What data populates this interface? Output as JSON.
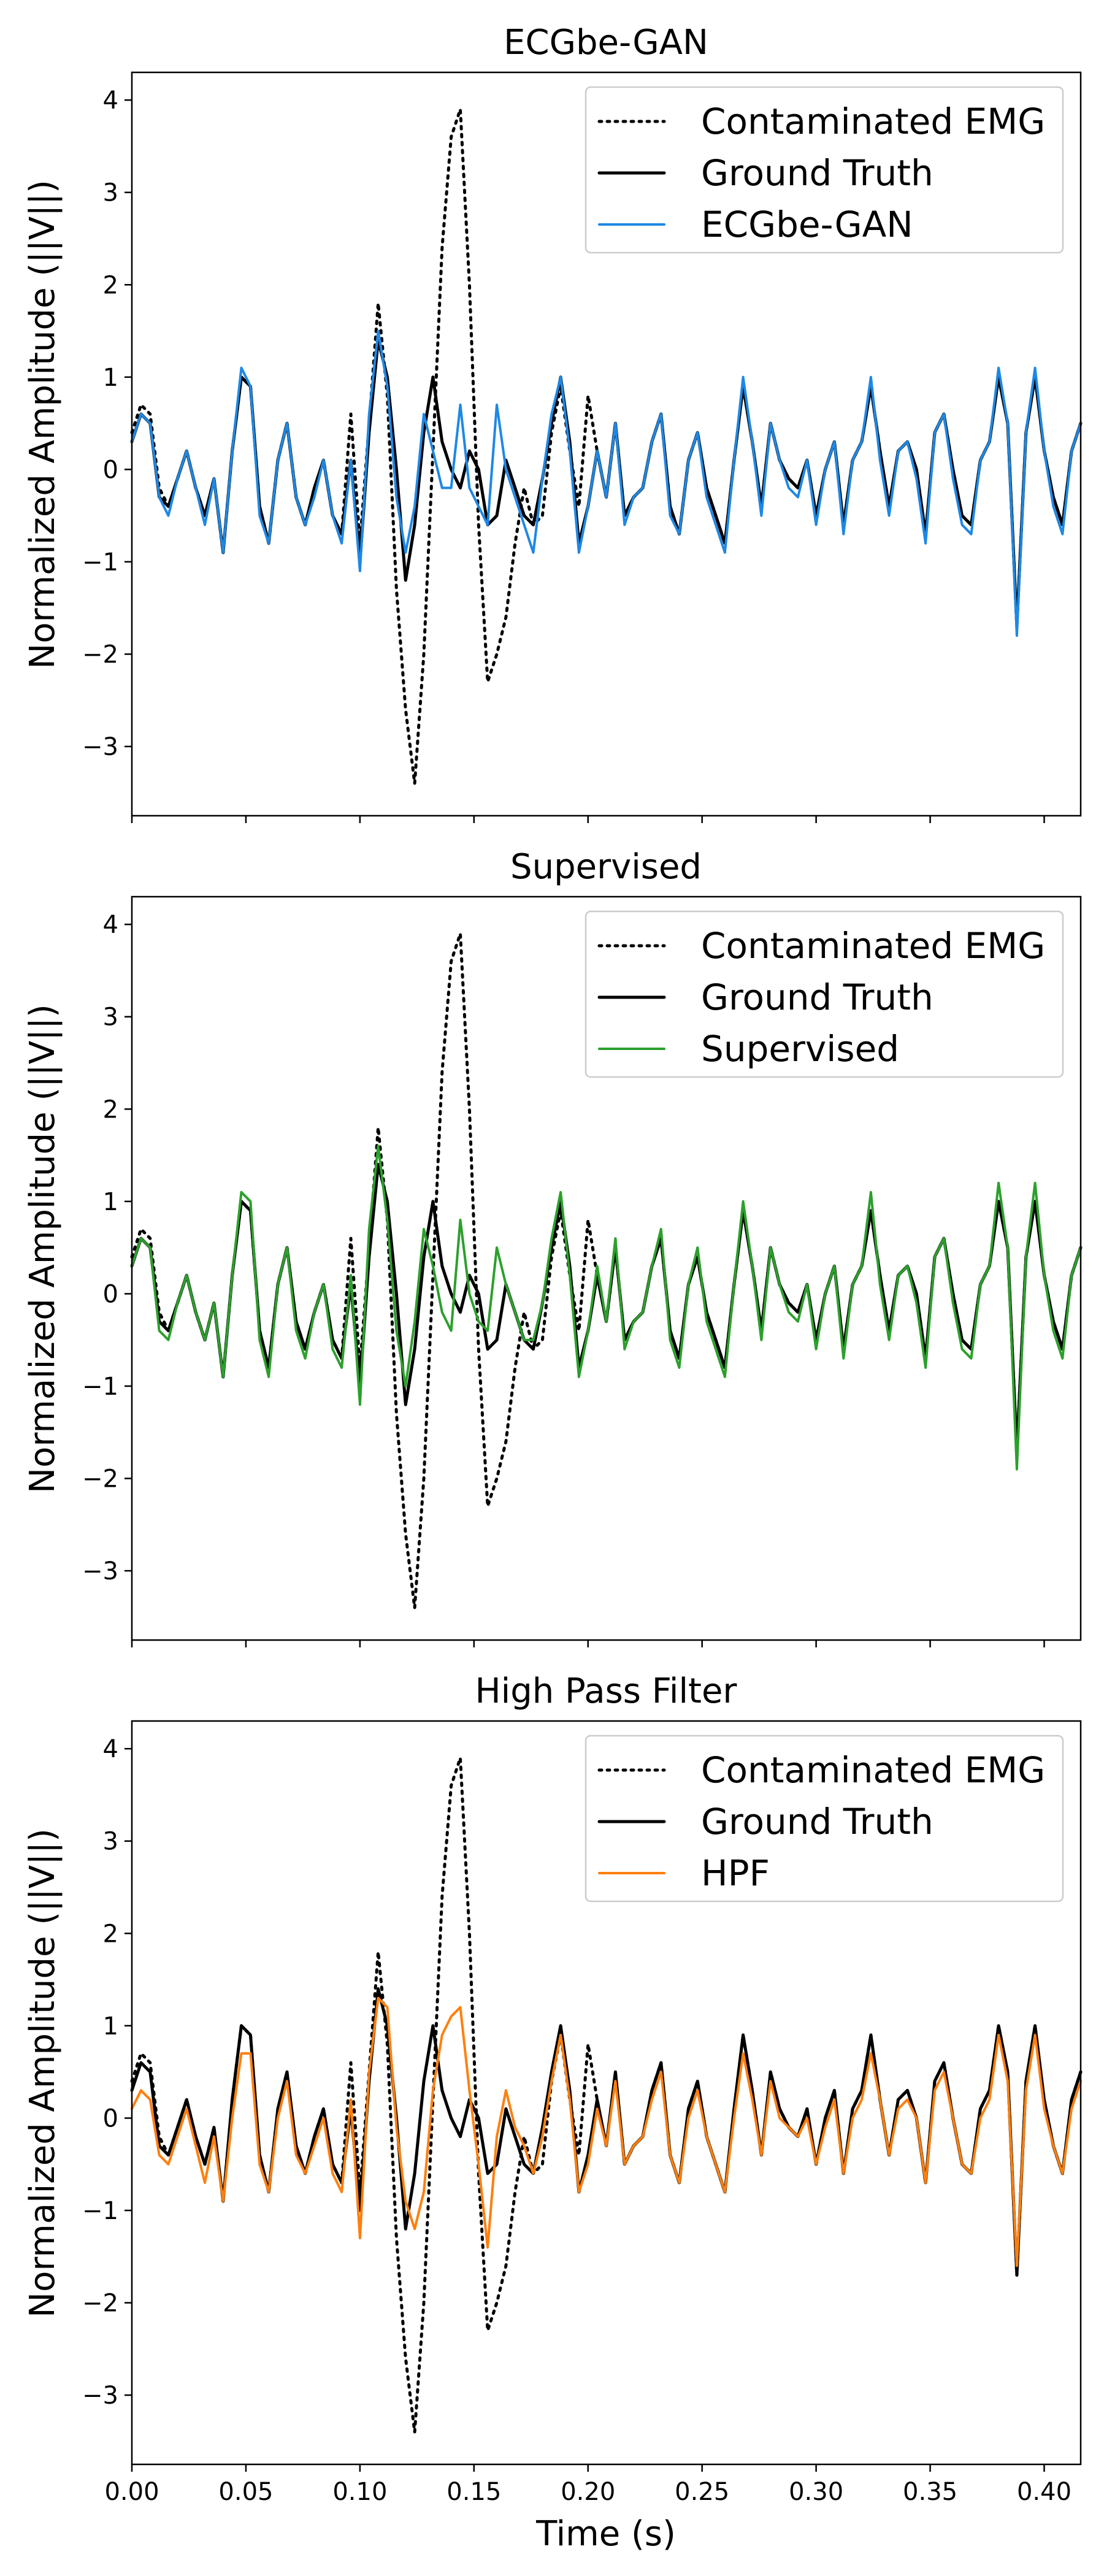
{
  "figure": {
    "xlabel": "Time (s)"
  },
  "chart_data": [
    {
      "type": "line",
      "title": "ECGbe-GAN",
      "ylabel": "Normalized Amplitude (||V||)",
      "xlabel": "",
      "xlim": [
        0,
        0.416
      ],
      "ylim": [
        -3.75,
        4.3
      ],
      "yticks": [
        -3,
        -2,
        -1,
        0,
        1,
        2,
        3,
        4
      ],
      "xticks": [
        0.0,
        0.05,
        0.1,
        0.15,
        0.2,
        0.25,
        0.3,
        0.35,
        0.4
      ],
      "xtick_labels_shown": false,
      "legend": "upper-right",
      "series": [
        {
          "name": "Contaminated EMG",
          "role": "contaminated",
          "color": "#000000",
          "style": "dotted"
        },
        {
          "name": "Ground Truth",
          "role": "truth",
          "color": "#000000",
          "style": "solid"
        },
        {
          "name": "ECGbe-GAN",
          "role": "method",
          "color": "#1e88e5",
          "style": "solid"
        }
      ]
    },
    {
      "type": "line",
      "title": "Supervised",
      "ylabel": "Normalized Amplitude (||V||)",
      "xlabel": "",
      "xlim": [
        0,
        0.416
      ],
      "ylim": [
        -3.75,
        4.3
      ],
      "yticks": [
        -3,
        -2,
        -1,
        0,
        1,
        2,
        3,
        4
      ],
      "xticks": [
        0.0,
        0.05,
        0.1,
        0.15,
        0.2,
        0.25,
        0.3,
        0.35,
        0.4
      ],
      "xtick_labels_shown": false,
      "legend": "upper-right",
      "series": [
        {
          "name": "Contaminated EMG",
          "role": "contaminated",
          "color": "#000000",
          "style": "dotted"
        },
        {
          "name": "Ground Truth",
          "role": "truth",
          "color": "#000000",
          "style": "solid"
        },
        {
          "name": "Supervised",
          "role": "method",
          "color": "#2ca02c",
          "style": "solid"
        }
      ]
    },
    {
      "type": "line",
      "title": "High Pass Filter",
      "ylabel": "Normalized Amplitude (||V||)",
      "xlabel": "Time (s)",
      "xlim": [
        0,
        0.416
      ],
      "ylim": [
        -3.75,
        4.3
      ],
      "yticks": [
        -3,
        -2,
        -1,
        0,
        1,
        2,
        3,
        4
      ],
      "xticks": [
        0.0,
        0.05,
        0.1,
        0.15,
        0.2,
        0.25,
        0.3,
        0.35,
        0.4
      ],
      "xtick_labels": [
        "0.00",
        "0.05",
        "0.10",
        "0.15",
        "0.20",
        "0.25",
        "0.30",
        "0.35",
        "0.40"
      ],
      "xtick_labels_shown": true,
      "legend": "upper-right",
      "series": [
        {
          "name": "Contaminated EMG",
          "role": "contaminated",
          "color": "#000000",
          "style": "dotted"
        },
        {
          "name": "Ground Truth",
          "role": "truth",
          "color": "#000000",
          "style": "solid"
        },
        {
          "name": "HPF",
          "role": "method",
          "color": "#ff7f0e",
          "style": "solid"
        }
      ]
    }
  ],
  "signal": {
    "x": [
      0.0,
      0.004,
      0.008,
      0.012,
      0.016,
      0.02,
      0.024,
      0.028,
      0.032,
      0.036,
      0.04,
      0.044,
      0.048,
      0.052,
      0.056,
      0.06,
      0.064,
      0.068,
      0.072,
      0.076,
      0.08,
      0.084,
      0.088,
      0.092,
      0.096,
      0.1,
      0.104,
      0.108,
      0.112,
      0.116,
      0.12,
      0.124,
      0.128,
      0.132,
      0.136,
      0.14,
      0.144,
      0.148,
      0.152,
      0.156,
      0.16,
      0.164,
      0.168,
      0.172,
      0.176,
      0.18,
      0.184,
      0.188,
      0.192,
      0.196,
      0.2,
      0.204,
      0.208,
      0.212,
      0.216,
      0.22,
      0.224,
      0.228,
      0.232,
      0.236,
      0.24,
      0.244,
      0.248,
      0.252,
      0.256,
      0.26,
      0.264,
      0.268,
      0.272,
      0.276,
      0.28,
      0.284,
      0.288,
      0.292,
      0.296,
      0.3,
      0.304,
      0.308,
      0.312,
      0.316,
      0.32,
      0.324,
      0.328,
      0.332,
      0.336,
      0.34,
      0.344,
      0.348,
      0.352,
      0.356,
      0.36,
      0.364,
      0.368,
      0.372,
      0.376,
      0.38,
      0.384,
      0.388,
      0.392,
      0.396,
      0.4,
      0.404,
      0.408,
      0.412,
      0.416
    ],
    "truth": [
      0.3,
      0.6,
      0.5,
      -0.3,
      -0.4,
      -0.1,
      0.2,
      -0.2,
      -0.5,
      -0.1,
      -0.9,
      0.2,
      1.0,
      0.9,
      -0.4,
      -0.8,
      0.1,
      0.5,
      -0.3,
      -0.6,
      -0.2,
      0.1,
      -0.5,
      -0.7,
      0.1,
      -1.0,
      0.4,
      1.4,
      1.0,
      0.0,
      -1.2,
      -0.6,
      0.4,
      1.0,
      0.3,
      0.0,
      -0.2,
      0.2,
      0.0,
      -0.6,
      -0.5,
      0.1,
      -0.2,
      -0.5,
      -0.6,
      -0.1,
      0.5,
      1.0,
      0.3,
      -0.8,
      -0.4,
      0.2,
      -0.3,
      0.5,
      -0.5,
      -0.3,
      -0.2,
      0.3,
      0.6,
      -0.4,
      -0.7,
      0.1,
      0.4,
      -0.2,
      -0.5,
      -0.8,
      0.1,
      0.9,
      0.3,
      -0.4,
      0.5,
      0.1,
      -0.1,
      -0.2,
      0.1,
      -0.5,
      0.0,
      0.3,
      -0.6,
      0.1,
      0.3,
      0.9,
      0.2,
      -0.4,
      0.2,
      0.3,
      0.0,
      -0.7,
      0.4,
      0.6,
      0.0,
      -0.5,
      -0.6,
      0.1,
      0.3,
      1.0,
      0.5,
      -1.7,
      0.4,
      1.0,
      0.2,
      -0.3,
      -0.6,
      0.2,
      0.5
    ],
    "contaminated": [
      0.4,
      0.7,
      0.6,
      -0.2,
      -0.4,
      -0.1,
      0.2,
      -0.2,
      -0.5,
      -0.1,
      -0.9,
      0.2,
      1.0,
      0.9,
      -0.4,
      -0.8,
      0.1,
      0.5,
      -0.3,
      -0.6,
      -0.2,
      0.1,
      -0.5,
      -0.7,
      0.6,
      -0.8,
      0.5,
      1.8,
      0.8,
      -1.3,
      -2.6,
      -3.4,
      -2.0,
      0.2,
      2.4,
      3.6,
      3.9,
      2.0,
      -0.6,
      -2.3,
      -2.0,
      -1.6,
      -0.8,
      -0.2,
      -0.6,
      -0.5,
      0.4,
      0.9,
      0.2,
      -0.4,
      0.8,
      0.2,
      -0.3,
      0.5,
      -0.5,
      -0.3,
      -0.2,
      0.3,
      0.6,
      -0.4,
      -0.7,
      0.1,
      0.4,
      -0.2,
      -0.5,
      -0.8,
      0.1,
      0.9,
      0.3,
      -0.4,
      0.5,
      0.1,
      -0.1,
      -0.2,
      0.1,
      -0.5,
      0.0,
      0.3,
      -0.6,
      0.1,
      0.3,
      0.9,
      0.2,
      -0.4,
      0.2,
      0.3,
      0.0,
      -0.7,
      0.4,
      0.6,
      0.0,
      -0.5,
      -0.6,
      0.1,
      0.3,
      1.0,
      0.5,
      -1.7,
      0.4,
      1.0,
      0.2,
      -0.3,
      -0.6,
      0.2,
      0.5
    ],
    "gan": [
      0.3,
      0.6,
      0.5,
      -0.3,
      -0.5,
      -0.1,
      0.2,
      -0.2,
      -0.6,
      -0.1,
      -0.9,
      0.2,
      1.1,
      0.9,
      -0.5,
      -0.8,
      0.1,
      0.5,
      -0.3,
      -0.6,
      -0.3,
      0.1,
      -0.5,
      -0.8,
      0.1,
      -1.1,
      0.6,
      1.5,
      0.9,
      -0.3,
      -0.9,
      -0.4,
      0.6,
      0.2,
      -0.2,
      -0.2,
      0.7,
      -0.2,
      -0.4,
      -0.6,
      0.7,
      0.0,
      -0.3,
      -0.6,
      -0.9,
      -0.1,
      0.6,
      1.0,
      0.2,
      -0.9,
      -0.4,
      0.2,
      -0.3,
      0.5,
      -0.6,
      -0.3,
      -0.2,
      0.3,
      0.6,
      -0.5,
      -0.7,
      0.1,
      0.4,
      -0.3,
      -0.6,
      -0.9,
      0.1,
      1.0,
      0.3,
      -0.5,
      0.5,
      0.1,
      -0.2,
      -0.3,
      0.1,
      -0.6,
      0.0,
      0.3,
      -0.7,
      0.1,
      0.3,
      1.0,
      0.1,
      -0.5,
      0.2,
      0.3,
      -0.1,
      -0.8,
      0.4,
      0.6,
      -0.1,
      -0.6,
      -0.7,
      0.1,
      0.3,
      1.1,
      0.5,
      -1.8,
      0.4,
      1.1,
      0.2,
      -0.4,
      -0.7,
      0.2,
      0.5
    ],
    "supervised": [
      0.3,
      0.6,
      0.5,
      -0.4,
      -0.5,
      -0.1,
      0.2,
      -0.2,
      -0.5,
      -0.1,
      -0.9,
      0.2,
      1.1,
      1.0,
      -0.5,
      -0.9,
      0.1,
      0.5,
      -0.4,
      -0.7,
      -0.2,
      0.1,
      -0.6,
      -0.8,
      0.2,
      -1.2,
      0.7,
      1.6,
      0.8,
      -0.4,
      -1.0,
      -0.3,
      0.7,
      0.3,
      -0.2,
      -0.4,
      0.8,
      0.0,
      -0.3,
      -0.4,
      0.5,
      0.1,
      -0.2,
      -0.5,
      -0.5,
      -0.1,
      0.6,
      1.1,
      0.2,
      -0.9,
      -0.4,
      0.3,
      -0.3,
      0.6,
      -0.6,
      -0.3,
      -0.2,
      0.3,
      0.7,
      -0.5,
      -0.8,
      0.1,
      0.5,
      -0.3,
      -0.6,
      -0.9,
      0.1,
      1.0,
      0.3,
      -0.5,
      0.5,
      0.1,
      -0.2,
      -0.3,
      0.1,
      -0.6,
      0.0,
      0.3,
      -0.7,
      0.1,
      0.3,
      1.1,
      0.1,
      -0.5,
      0.2,
      0.3,
      -0.1,
      -0.8,
      0.4,
      0.6,
      -0.1,
      -0.6,
      -0.7,
      0.1,
      0.3,
      1.2,
      0.5,
      -1.9,
      0.4,
      1.2,
      0.2,
      -0.4,
      -0.7,
      0.2,
      0.5
    ],
    "hpf": [
      0.1,
      0.3,
      0.2,
      -0.4,
      -0.5,
      -0.2,
      0.1,
      -0.3,
      -0.7,
      -0.2,
      -0.9,
      0.0,
      0.7,
      0.7,
      -0.5,
      -0.8,
      0.0,
      0.4,
      -0.4,
      -0.6,
      -0.3,
      0.0,
      -0.6,
      -0.8,
      0.2,
      -1.3,
      0.5,
      1.3,
      1.2,
      -0.1,
      -0.9,
      -1.2,
      -0.8,
      0.3,
      0.9,
      1.1,
      1.2,
      0.3,
      -0.5,
      -1.4,
      -0.2,
      0.3,
      -0.1,
      -0.3,
      -0.6,
      -0.2,
      0.4,
      0.9,
      0.2,
      -0.8,
      -0.5,
      0.1,
      -0.3,
      0.4,
      -0.5,
      -0.3,
      -0.2,
      0.2,
      0.5,
      -0.4,
      -0.7,
      0.0,
      0.3,
      -0.2,
      -0.5,
      -0.8,
      0.0,
      0.7,
      0.2,
      -0.4,
      0.4,
      0.0,
      -0.1,
      -0.2,
      0.0,
      -0.5,
      -0.1,
      0.2,
      -0.6,
      0.0,
      0.2,
      0.7,
      0.2,
      -0.4,
      0.1,
      0.2,
      0.0,
      -0.7,
      0.3,
      0.5,
      0.0,
      -0.5,
      -0.6,
      0.0,
      0.2,
      0.9,
      0.4,
      -1.6,
      0.3,
      0.9,
      0.1,
      -0.3,
      -0.6,
      0.1,
      0.4
    ]
  }
}
